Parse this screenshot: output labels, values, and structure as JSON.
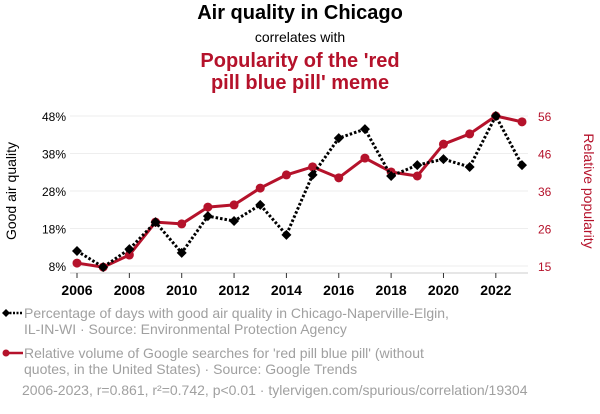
{
  "header": {
    "title": "Air quality in Chicago",
    "subtitle": "correlates with",
    "title2_line1": "Popularity of the 'red",
    "title2_line2": "pill blue pill' meme"
  },
  "legend": {
    "series1": "Percentage of days with good air quality in Chicago-Naperville-Elgin, IL-IN-WI · Source: Environmental Protection Agency",
    "series2": "Relative volume of Google searches for 'red pill blue pill' (without quotes, in the United States) · Source: Google Trends"
  },
  "footer": "2006-2023, r=0.861, r²=0.742, p<0.01 · tylervigen.com/spurious/correlation/19304",
  "colors": {
    "series1": "#000000",
    "series2": "#b5122b",
    "grid": "#eeeeee",
    "legend_text": "#a0a0a0"
  },
  "chart_data": {
    "type": "line",
    "title": "Air quality in Chicago correlates with Popularity of the 'red pill blue pill' meme",
    "x": [
      2006,
      2007,
      2008,
      2009,
      2010,
      2011,
      2012,
      2013,
      2014,
      2015,
      2016,
      2017,
      2018,
      2019,
      2020,
      2021,
      2022,
      2023
    ],
    "xlabel": "",
    "xticks": [
      "2006",
      "2008",
      "2010",
      "2012",
      "2014",
      "2016",
      "2018",
      "2020",
      "2022"
    ],
    "xlim": [
      2006,
      2023
    ],
    "ylabel_left": "Good air quality",
    "ylabel_right": "Relative popularity",
    "yticks_left": [
      "48%",
      "38%",
      "28%",
      "18%",
      "8%"
    ],
    "yticks_right": [
      "56",
      "46",
      "36",
      "26",
      "15"
    ],
    "ylim_left": [
      8,
      48
    ],
    "ylim_right": [
      15,
      56
    ],
    "grid": true,
    "legend_position": "bottom",
    "series": [
      {
        "name": "Percentage of days with good air quality in Chicago-Naperville-Elgin, IL-IN-WI",
        "axis": "left",
        "marker": "diamond",
        "line_style": "dotted",
        "values": [
          12.0,
          7.7,
          12.5,
          19.7,
          11.5,
          21.3,
          20.0,
          24.3,
          16.3,
          32.3,
          42.1,
          44.5,
          32.0,
          34.9,
          36.5,
          34.4,
          48.0,
          34.9
        ]
      },
      {
        "name": "Relative volume of Google searches for 'red pill blue pill'",
        "axis": "right",
        "marker": "circle",
        "line_style": "solid",
        "values": [
          15.8,
          14.7,
          18.0,
          27.0,
          26.5,
          31.1,
          31.7,
          36.3,
          39.9,
          42.1,
          39.1,
          44.5,
          40.7,
          39.6,
          48.3,
          51.1,
          56.0,
          54.4
        ]
      }
    ]
  }
}
